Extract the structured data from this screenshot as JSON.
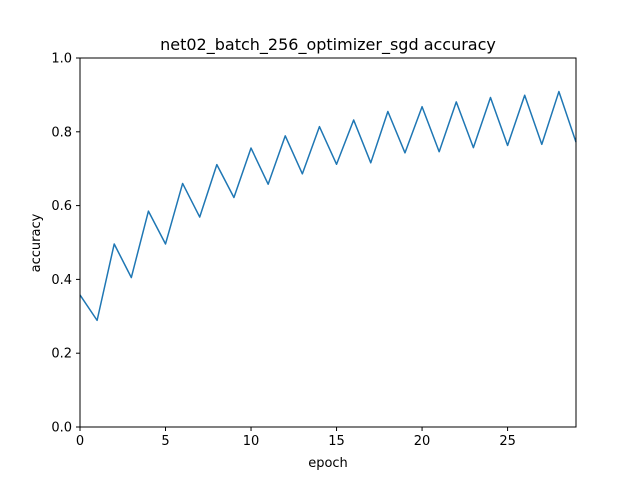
{
  "chart_data": {
    "type": "line",
    "title": "net02_batch_256_optimizer_sgd accuracy",
    "xlabel": "epoch",
    "ylabel": "accuracy",
    "xlim": [
      0,
      29
    ],
    "ylim": [
      0.0,
      1.0
    ],
    "grid": false,
    "x_ticks": [
      0,
      5,
      10,
      15,
      20,
      25
    ],
    "x_tick_labels": [
      "0",
      "5",
      "10",
      "15",
      "20",
      "25"
    ],
    "y_ticks": [
      0.0,
      0.2,
      0.4,
      0.6,
      0.8,
      1.0
    ],
    "y_tick_labels": [
      "0.0",
      "0.2",
      "0.4",
      "0.6",
      "0.8",
      "1.0"
    ],
    "series": [
      {
        "color": "#1f77b4",
        "x": [
          0,
          1,
          2,
          3,
          4,
          5,
          6,
          7,
          8,
          9,
          10,
          11,
          12,
          13,
          14,
          15,
          16,
          17,
          18,
          19,
          20,
          21,
          22,
          23,
          24,
          25,
          26,
          27,
          28,
          29
        ],
        "values": [
          0.358,
          0.289,
          0.496,
          0.405,
          0.585,
          0.496,
          0.66,
          0.569,
          0.711,
          0.622,
          0.756,
          0.658,
          0.789,
          0.686,
          0.814,
          0.712,
          0.832,
          0.716,
          0.855,
          0.743,
          0.868,
          0.746,
          0.881,
          0.757,
          0.893,
          0.763,
          0.899,
          0.766,
          0.909,
          0.772
        ]
      }
    ]
  }
}
